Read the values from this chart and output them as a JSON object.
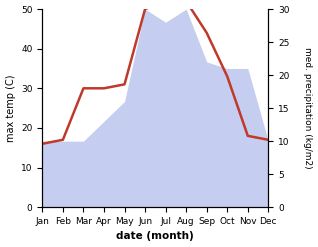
{
  "months": [
    "Jan",
    "Feb",
    "Mar",
    "Apr",
    "May",
    "Jun",
    "Jul",
    "Aug",
    "Sep",
    "Oct",
    "Nov",
    "Dec"
  ],
  "temperature": [
    16,
    17,
    30,
    30,
    31,
    50,
    52,
    52,
    44,
    33,
    18,
    17
  ],
  "precipitation": [
    10,
    10,
    10,
    13,
    16,
    30,
    28,
    30,
    22,
    21,
    21,
    10
  ],
  "temp_color": "#c0392b",
  "precip_fill_color": "#c5cdf0",
  "left_label": "max temp (C)",
  "right_label": "med. precipitation (kg/m2)",
  "xlabel": "date (month)",
  "ylim_left": [
    0,
    50
  ],
  "ylim_right": [
    0,
    30
  ],
  "yticks_left": [
    0,
    10,
    20,
    30,
    40,
    50
  ],
  "yticks_right": [
    0,
    5,
    10,
    15,
    20,
    25,
    30
  ],
  "scale_factor": 1.6667,
  "background_color": "#ffffff"
}
